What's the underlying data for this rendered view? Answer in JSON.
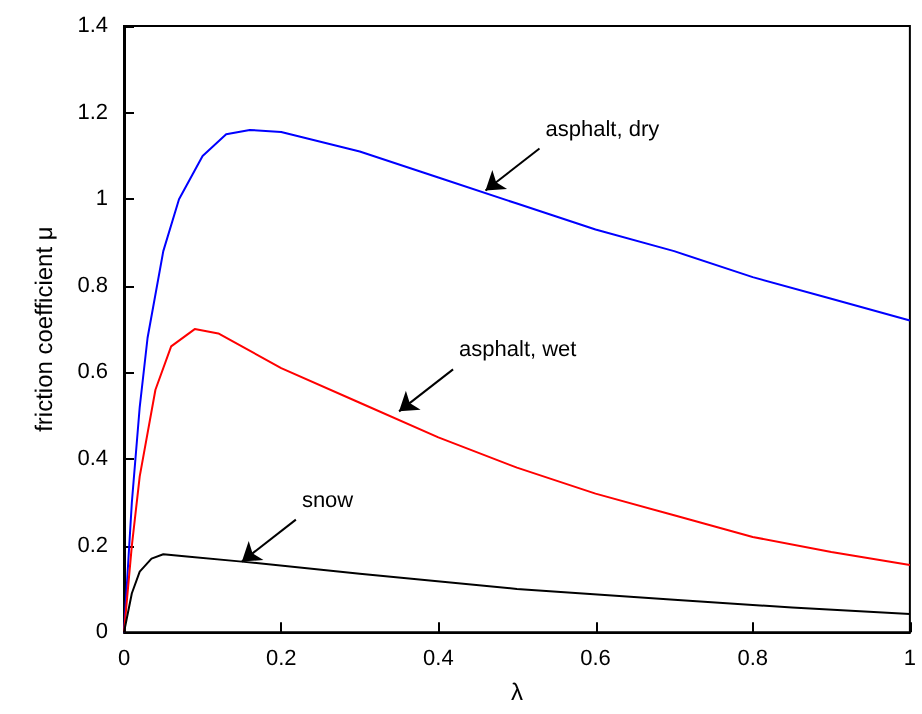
{
  "chart_data": {
    "type": "line",
    "xlabel": "λ",
    "ylabel": "friction coefficient μ",
    "xlim": [
      0,
      1
    ],
    "ylim": [
      0,
      1.4
    ],
    "xticks": [
      0,
      0.2,
      0.4,
      0.6,
      0.8,
      1
    ],
    "yticks": [
      0,
      0.2,
      0.4,
      0.6,
      0.8,
      1,
      1.2,
      1.4
    ],
    "grid": false,
    "marker": "none",
    "line_style": "solid",
    "series": [
      {
        "color": "#0000ff",
        "x": [
          0,
          0.01,
          0.02,
          0.03,
          0.05,
          0.07,
          0.1,
          0.13,
          0.16,
          0.2,
          0.3,
          0.4,
          0.5,
          0.6,
          0.7,
          0.8,
          0.9,
          1
        ],
        "values": [
          0,
          0.3,
          0.52,
          0.68,
          0.88,
          1.0,
          1.1,
          1.15,
          1.16,
          1.155,
          1.11,
          1.05,
          0.99,
          0.93,
          0.88,
          0.82,
          0.77,
          0.72
        ]
      },
      {
        "color": "#ff0000",
        "x": [
          0,
          0.01,
          0.02,
          0.04,
          0.06,
          0.09,
          0.12,
          0.15,
          0.2,
          0.3,
          0.4,
          0.5,
          0.6,
          0.7,
          0.8,
          0.9,
          1
        ],
        "values": [
          0,
          0.2,
          0.36,
          0.56,
          0.66,
          0.7,
          0.69,
          0.66,
          0.61,
          0.53,
          0.45,
          0.38,
          0.32,
          0.27,
          0.22,
          0.185,
          0.155
        ]
      },
      {
        "color": "#000000",
        "x": [
          0,
          0.01,
          0.02,
          0.035,
          0.05,
          0.08,
          0.15,
          0.3,
          0.5,
          0.7,
          0.85,
          1
        ],
        "values": [
          0,
          0.09,
          0.14,
          0.17,
          0.18,
          0.175,
          0.163,
          0.135,
          0.1,
          0.075,
          0.057,
          0.042
        ]
      }
    ],
    "annotations": [
      {
        "text": "asphalt, dry",
        "x": 0.46,
        "y": 1.02
      },
      {
        "text": "asphalt, wet",
        "x": 0.35,
        "y": 0.51
      },
      {
        "text": "snow",
        "x": 0.15,
        "y": 0.163
      }
    ]
  }
}
